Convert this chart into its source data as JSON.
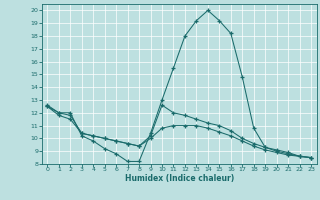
{
  "xlabel": "Humidex (Indice chaleur)",
  "bg_color": "#bde0e0",
  "line_color": "#1a6b6b",
  "grid_color": "#ffffff",
  "xlim": [
    -0.5,
    23.5
  ],
  "ylim": [
    8,
    20.5
  ],
  "yticks": [
    8,
    9,
    10,
    11,
    12,
    13,
    14,
    15,
    16,
    17,
    18,
    19,
    20
  ],
  "xticks": [
    0,
    1,
    2,
    3,
    4,
    5,
    6,
    7,
    8,
    9,
    10,
    11,
    12,
    13,
    14,
    15,
    16,
    17,
    18,
    19,
    20,
    21,
    22,
    23
  ],
  "line1_y": [
    12.6,
    12.0,
    12.0,
    10.2,
    9.8,
    9.2,
    8.8,
    8.2,
    8.2,
    10.4,
    13.0,
    15.5,
    18.0,
    19.2,
    20.0,
    19.2,
    18.2,
    14.8,
    10.8,
    9.3,
    9.1,
    8.9,
    8.6,
    8.5
  ],
  "line2_y": [
    12.5,
    11.8,
    11.5,
    10.4,
    10.2,
    10.0,
    9.8,
    9.6,
    9.4,
    10.2,
    12.6,
    12.0,
    11.8,
    11.5,
    11.2,
    11.0,
    10.6,
    10.0,
    9.6,
    9.3,
    9.0,
    8.8,
    8.6,
    8.5
  ],
  "line3_y": [
    12.5,
    12.0,
    11.8,
    10.4,
    10.2,
    10.0,
    9.8,
    9.6,
    9.4,
    10.0,
    10.8,
    11.0,
    11.0,
    11.0,
    10.8,
    10.5,
    10.2,
    9.8,
    9.4,
    9.1,
    8.9,
    8.7,
    8.6,
    8.5
  ]
}
